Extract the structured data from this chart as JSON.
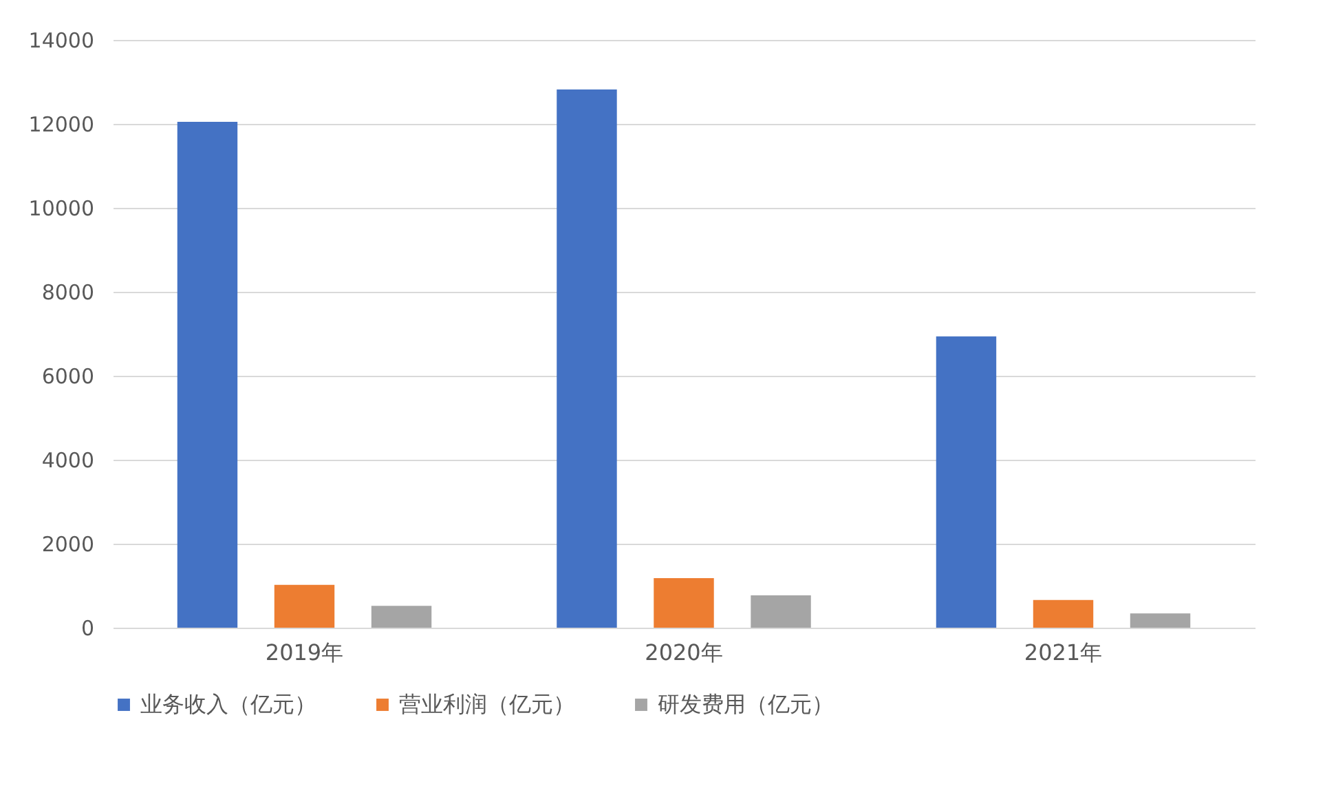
{
  "chart_data": {
    "type": "bar",
    "categories": [
      "2019年",
      "2020年",
      "2021年"
    ],
    "series": [
      {
        "name": "业务收入（亿元）",
        "color": "#4472c4",
        "values": [
          12050,
          12820,
          6940
        ]
      },
      {
        "name": "营业利润（亿元）",
        "color": "#ed7d31",
        "values": [
          1020,
          1180,
          660
        ]
      },
      {
        "name": "研发费用（亿元）",
        "color": "#a5a5a5",
        "values": [
          520,
          770,
          340
        ]
      }
    ],
    "ylim": [
      0,
      14000
    ],
    "yticks": [
      0,
      2000,
      4000,
      6000,
      8000,
      10000,
      12000,
      14000
    ],
    "grid": "y",
    "legend": "bottom"
  }
}
